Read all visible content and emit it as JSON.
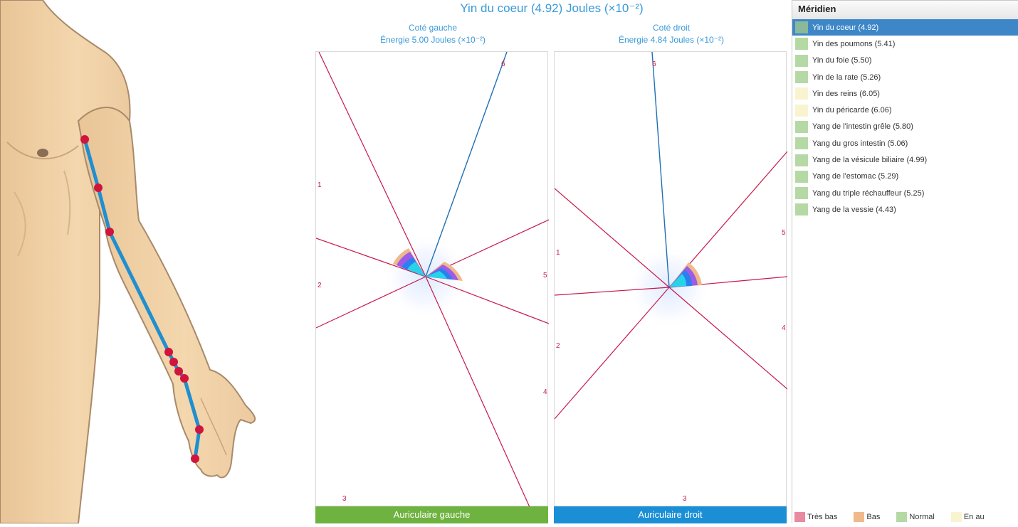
{
  "title": "Yin du coeur (4.92) Joules (×10⁻²)",
  "left": {
    "side": "Coté gauche",
    "energy": "Énergie 5.00 Joules (×10⁻²)",
    "finger": "Auriculaire gauche",
    "finger_color": "#6eb23f",
    "ray_labels": [
      "1",
      "2",
      "3",
      "4",
      "5",
      "6"
    ]
  },
  "right": {
    "side": "Coté droit",
    "energy": "Énergie 4.84 Joules (×10⁻²)",
    "finger": "Auriculaire droit",
    "finger_color": "#1a8fd6",
    "ray_labels": [
      "1",
      "2",
      "3",
      "4",
      "5",
      "6"
    ]
  },
  "meridians": {
    "header": "Méridien",
    "items": [
      {
        "label": "Yin du coeur (4.92)",
        "color": "#8ab89a",
        "selected": true
      },
      {
        "label": "Yin des poumons (5.41)",
        "color": "#b5d9a4"
      },
      {
        "label": "Yin du foie (5.50)",
        "color": "#b5d9a4"
      },
      {
        "label": "Yin de la rate (5.26)",
        "color": "#b5d9a4"
      },
      {
        "label": "Yin des reins (6.05)",
        "color": "#f8f4cf"
      },
      {
        "label": "Yin du péricarde (6.06)",
        "color": "#f8f4cf"
      },
      {
        "label": "Yang de l'intestin grêle (5.80)",
        "color": "#b5d9a4"
      },
      {
        "label": "Yang du gros intestin (5.06)",
        "color": "#b5d9a4"
      },
      {
        "label": "Yang de la vésicule biliaire (4.99)",
        "color": "#b5d9a4"
      },
      {
        "label": "Yang de l'estomac (5.29)",
        "color": "#b5d9a4"
      },
      {
        "label": "Yang du triple réchauffeur (5.25)",
        "color": "#b5d9a4"
      },
      {
        "label": "Yang de la vessie (4.43)",
        "color": "#b5d9a4"
      }
    ]
  },
  "legend": [
    {
      "label": "Très bas",
      "color": "#e98aa0"
    },
    {
      "label": "Bas",
      "color": "#f0b98a"
    },
    {
      "label": "Normal",
      "color": "#b5d9a4"
    },
    {
      "label": "En au",
      "color": "#f8f4cf"
    }
  ],
  "colors": {
    "accent": "#3a9ad9",
    "ray": "#c8184a",
    "ray_selected": "#1f6fb5",
    "meridian_line": "#1f8fd0",
    "acupoint": "#d0143c",
    "skin": "#f2d2a8"
  }
}
